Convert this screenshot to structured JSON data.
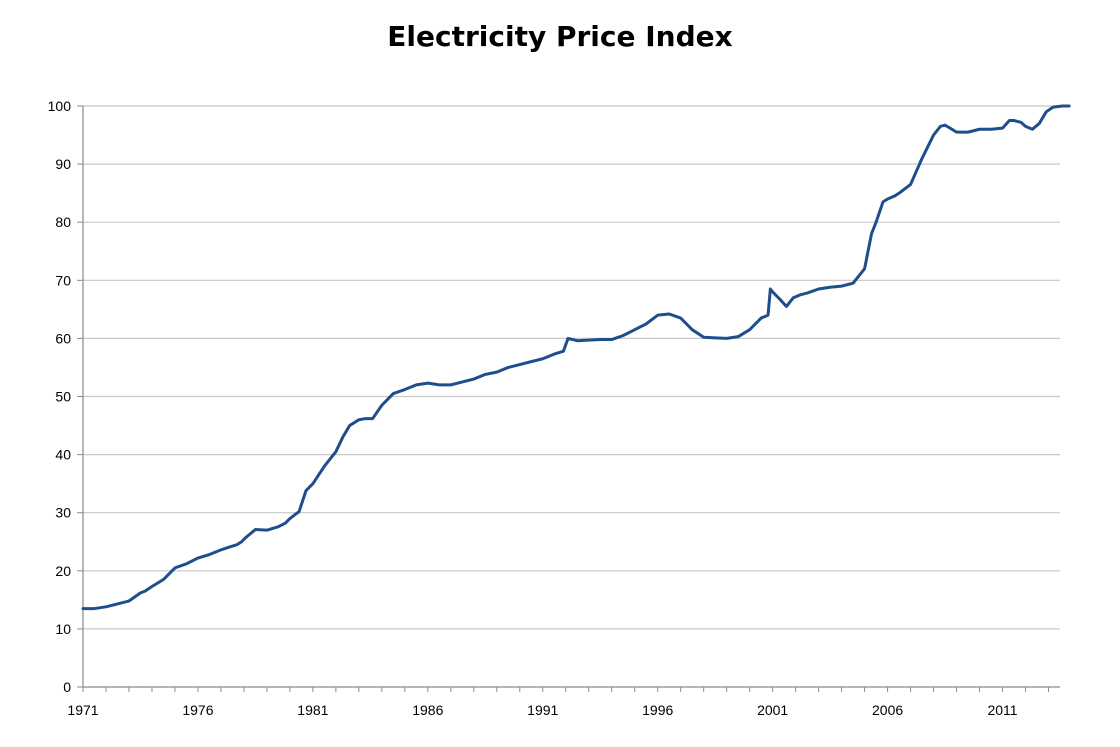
{
  "chart_data": {
    "type": "line",
    "title": "Electricity Price Index",
    "xlabel": "",
    "ylabel": "",
    "xlim": [
      1971,
      2013.5
    ],
    "ylim": [
      0,
      100
    ],
    "x_ticks": [
      "1971",
      "1976",
      "1981",
      "1986",
      "1991",
      "1996",
      "2001",
      "2006",
      "2011"
    ],
    "y_ticks": [
      "0",
      "10",
      "20",
      "30",
      "40",
      "50",
      "60",
      "70",
      "80",
      "90",
      "100"
    ],
    "grid": "horizontal",
    "legend": "none",
    "line_color": "#1f4e8c",
    "series": [
      {
        "x": [
          1971.0,
          1971.5,
          1972.0,
          1972.5,
          1973.0,
          1973.5,
          1973.7,
          1974.0,
          1974.5,
          1975.0,
          1975.5,
          1976.0,
          1976.5,
          1977.0,
          1977.3,
          1977.7,
          1977.9,
          1978.1,
          1978.5,
          1979.0,
          1979.5,
          1979.8,
          1980.0,
          1980.4,
          1980.7,
          1981.0,
          1981.5,
          1982.0,
          1982.3,
          1982.6,
          1983.0,
          1983.3,
          1983.6,
          1984.0,
          1984.5,
          1985.0,
          1985.5,
          1986.0,
          1986.5,
          1987.0,
          1987.5,
          1988.0,
          1988.5,
          1989.0,
          1989.5,
          1990.0,
          1990.5,
          1991.0,
          1991.5,
          1991.9,
          1992.1,
          1992.5,
          1993.0,
          1993.5,
          1994.0,
          1994.5,
          1995.0,
          1995.5,
          1996.0,
          1996.5,
          1997.0,
          1997.5,
          1998.0,
          1998.5,
          1999.0,
          1999.5,
          2000.0,
          2000.5,
          2000.8,
          2000.9,
          2001.0,
          2001.3,
          2001.6,
          2001.9,
          2002.2,
          2002.5,
          2003.0,
          2003.5,
          2004.0,
          2004.5,
          2005.0,
          2005.3,
          2005.5,
          2005.8,
          2006.0,
          2006.3,
          2006.5,
          2007.0,
          2007.5,
          2008.0,
          2008.3,
          2008.5,
          2008.8,
          2009.0,
          2009.5,
          2010.0,
          2010.5,
          2011.0,
          2011.3,
          2011.5,
          2011.8,
          2012.0,
          2012.3,
          2012.6,
          2012.9,
          2013.2,
          2013.6,
          2013.9
        ],
        "values": [
          13.5,
          13.5,
          13.8,
          14.3,
          14.8,
          16.2,
          16.5,
          17.3,
          18.5,
          20.5,
          21.2,
          22.2,
          22.8,
          23.6,
          24.0,
          24.5,
          25.0,
          25.8,
          27.1,
          27.0,
          27.6,
          28.2,
          29.0,
          30.2,
          33.8,
          35.0,
          38.0,
          40.5,
          43.0,
          45.0,
          46.0,
          46.2,
          46.2,
          48.5,
          50.5,
          51.2,
          52.0,
          52.3,
          52.0,
          52.0,
          52.5,
          53.0,
          53.8,
          54.2,
          55.0,
          55.5,
          56.0,
          56.5,
          57.3,
          57.8,
          60.0,
          59.6,
          59.7,
          59.8,
          59.8,
          60.5,
          61.5,
          62.5,
          64.0,
          64.2,
          63.5,
          61.5,
          60.2,
          60.1,
          60.0,
          60.3,
          61.5,
          63.5,
          64.0,
          68.5,
          68.0,
          66.8,
          65.5,
          67.0,
          67.5,
          67.8,
          68.5,
          68.8,
          69.0,
          69.5,
          72.0,
          78.0,
          80.0,
          83.5,
          84.0,
          84.5,
          85.0,
          86.5,
          91.0,
          95.0,
          96.5,
          96.7,
          96.0,
          95.5,
          95.5,
          96.0,
          96.0,
          96.2,
          97.5,
          97.5,
          97.2,
          96.5,
          96.0,
          97.0,
          99.0,
          99.8,
          100.0,
          100.0
        ]
      }
    ]
  }
}
